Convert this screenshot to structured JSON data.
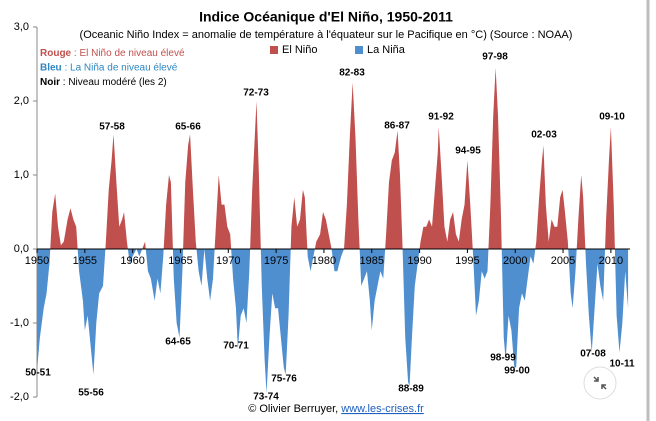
{
  "chart_data": {
    "type": "area",
    "title": "Indice Océanique d'El Niño, 1950-2011",
    "subtitle": "(Oceanic Niño Index = anomalie de température à l'équateur sur le Pacifique en °C) (Source : NOAA)",
    "series": [
      {
        "name": "El Niño",
        "color": "#c0504d"
      },
      {
        "name": "La Niña",
        "color": "#4f8fd0"
      }
    ],
    "notes": [
      {
        "key": "Rouge",
        "text": ": El Niño de niveau élevé",
        "color": "#c0504d"
      },
      {
        "key": "Bleu",
        "text": ": La Niña de niveau élevé",
        "color": "#2e86c1"
      },
      {
        "key": "Noir",
        "text": ": Niveau modéré (les 2)",
        "color": "#000000"
      }
    ],
    "annotations": [
      {
        "text": "57-58",
        "color": "#b83b3b"
      },
      {
        "text": "65-66",
        "color": "#b83b3b"
      },
      {
        "text": "72-73",
        "color": "#b83b3b"
      },
      {
        "text": "82-83",
        "color": "#b83b3b"
      },
      {
        "text": "86-87",
        "color": "#000000"
      },
      {
        "text": "91-92",
        "color": "#b83b3b"
      },
      {
        "text": "94-95",
        "color": "#000000"
      },
      {
        "text": "97-98",
        "color": "#b83b3b"
      },
      {
        "text": "02-03",
        "color": "#000000"
      },
      {
        "text": "09-10",
        "color": "#b83b3b"
      },
      {
        "text": "50-51",
        "color": "#000000"
      },
      {
        "text": "55-56",
        "color": "#2e86c1"
      },
      {
        "text": "64-65",
        "color": "#000000"
      },
      {
        "text": "70-71",
        "color": "#000000"
      },
      {
        "text": "73-74",
        "color": "#2e86c1"
      },
      {
        "text": "75-76",
        "color": "#2e86c1"
      },
      {
        "text": "88-89",
        "color": "#2e86c1"
      },
      {
        "text": "98-99",
        "color": "#000000"
      },
      {
        "text": "99-00",
        "color": "#000000"
      },
      {
        "text": "07-08",
        "color": "#000000"
      },
      {
        "text": "10-11",
        "color": "#000000"
      }
    ],
    "credit": "© Olivier Berruyer,",
    "link": "www.les-crises.fr",
    "xlim": [
      1950,
      2012
    ],
    "xticks": [
      1950,
      1955,
      1960,
      1965,
      1970,
      1975,
      1980,
      1985,
      1990,
      1995,
      2000,
      2005,
      2010
    ],
    "ylim": [
      -2,
      3
    ],
    "yticks": [
      {
        "value": -2,
        "label": "-2,0"
      },
      {
        "value": -1,
        "label": "-1,0"
      },
      {
        "value": 0,
        "label": "0,0"
      },
      {
        "value": 1,
        "label": "1,0"
      },
      {
        "value": 2,
        "label": "2,0"
      },
      {
        "value": 3,
        "label": "3,0"
      }
    ],
    "x": [
      1950.0,
      1950.3,
      1950.7,
      1951.0,
      1951.3,
      1951.6,
      1951.9,
      1952.2,
      1952.5,
      1952.8,
      1953.2,
      1953.5,
      1953.8,
      1954.1,
      1954.4,
      1954.8,
      1955.0,
      1955.3,
      1955.6,
      1955.9,
      1956.2,
      1956.5,
      1956.9,
      1957.2,
      1957.5,
      1957.8,
      1958.0,
      1958.3,
      1958.6,
      1958.9,
      1959.1,
      1959.4,
      1959.7,
      1960.0,
      1960.4,
      1960.7,
      1961.0,
      1961.3,
      1961.6,
      1961.9,
      1962.3,
      1962.6,
      1962.9,
      1963.2,
      1963.5,
      1963.8,
      1964.0,
      1964.3,
      1964.6,
      1964.9,
      1965.2,
      1965.5,
      1965.8,
      1966.0,
      1966.3,
      1966.6,
      1966.9,
      1967.2,
      1967.5,
      1967.8,
      1968.1,
      1968.4,
      1968.7,
      1969.0,
      1969.3,
      1969.6,
      1969.9,
      1970.2,
      1970.5,
      1970.8,
      1971.0,
      1971.3,
      1971.6,
      1971.9,
      1972.2,
      1972.5,
      1972.8,
      1972.95,
      1973.2,
      1973.5,
      1973.8,
      1974.0,
      1974.3,
      1974.6,
      1974.9,
      1975.2,
      1975.5,
      1975.8,
      1976.0,
      1976.3,
      1976.6,
      1976.9,
      1977.2,
      1977.5,
      1977.8,
      1978.0,
      1978.3,
      1978.6,
      1978.9,
      1979.2,
      1979.6,
      1979.9,
      1980.2,
      1980.5,
      1980.8,
      1981.1,
      1981.4,
      1981.8,
      1982.1,
      1982.4,
      1982.7,
      1983.0,
      1983.3,
      1983.6,
      1983.9,
      1984.2,
      1984.5,
      1984.8,
      1985.0,
      1985.3,
      1985.6,
      1985.9,
      1986.2,
      1986.5,
      1986.8,
      1987.1,
      1987.4,
      1987.7,
      1987.95,
      1988.2,
      1988.5,
      1988.8,
      1988.95,
      1989.2,
      1989.5,
      1989.8,
      1990.1,
      1990.4,
      1990.7,
      1991.0,
      1991.3,
      1991.6,
      1991.9,
      1992.0,
      1992.3,
      1992.6,
      1992.9,
      1993.2,
      1993.5,
      1993.8,
      1994.1,
      1994.4,
      1994.7,
      1995.0,
      1995.3,
      1995.6,
      1995.9,
      1996.2,
      1996.5,
      1996.8,
      1997.1,
      1997.4,
      1997.7,
      1997.95,
      1998.2,
      1998.5,
      1998.8,
      1999.0,
      1999.3,
      1999.6,
      1999.9,
      2000.1,
      2000.4,
      2000.7,
      2001.0,
      2001.3,
      2001.6,
      2001.9,
      2002.2,
      2002.5,
      2002.8,
      2002.95,
      2003.2,
      2003.5,
      2003.8,
      2004.1,
      2004.4,
      2004.7,
      2004.95,
      2005.2,
      2005.5,
      2005.8,
      2006.0,
      2006.3,
      2006.6,
      2006.9,
      2007.1,
      2007.4,
      2007.7,
      2008.0,
      2008.3,
      2008.6,
      2008.9,
      2009.2,
      2009.5,
      2009.8,
      2010.0,
      2010.3,
      2010.6,
      2010.9,
      2011.2,
      2011.5,
      2011.8
    ],
    "values": [
      -1.65,
      -1.2,
      -0.8,
      -0.6,
      -0.2,
      0.5,
      0.75,
      0.3,
      0.05,
      0.1,
      0.4,
      0.55,
      0.4,
      0.3,
      -0.3,
      -0.7,
      -1.1,
      -0.9,
      -1.3,
      -1.7,
      -1.0,
      -0.6,
      -0.5,
      0.1,
      0.8,
      1.2,
      1.55,
      0.9,
      0.3,
      0.4,
      0.5,
      0.1,
      -0.2,
      -0.1,
      0.0,
      -0.1,
      0.0,
      0.1,
      -0.3,
      -0.4,
      -0.7,
      -0.4,
      -0.6,
      -0.1,
      0.6,
      1.0,
      0.9,
      -0.4,
      -1.0,
      -1.2,
      -0.3,
      0.9,
      1.4,
      1.55,
      0.8,
      0.1,
      -0.3,
      -0.5,
      0.0,
      -0.4,
      -0.7,
      -0.4,
      0.3,
      1.0,
      0.6,
      0.6,
      0.3,
      0.2,
      -0.4,
      -0.8,
      -1.35,
      -0.9,
      -0.8,
      -1.0,
      -0.3,
      0.8,
      1.6,
      2.0,
      1.0,
      -0.5,
      -1.5,
      -1.95,
      -1.2,
      -0.6,
      -0.8,
      -0.8,
      -1.2,
      -1.6,
      -1.7,
      -0.9,
      0.3,
      0.7,
      0.3,
      0.4,
      0.8,
      0.7,
      -0.1,
      -0.3,
      -0.1,
      0.1,
      0.2,
      0.5,
      0.4,
      0.2,
      0.0,
      -0.3,
      -0.3,
      -0.1,
      0.0,
      0.6,
      1.5,
      2.25,
      1.5,
      0.4,
      -0.5,
      -0.4,
      -0.3,
      -0.7,
      -1.1,
      -0.7,
      -0.5,
      -0.3,
      -0.4,
      0.2,
      0.9,
      1.2,
      1.3,
      1.6,
      1.0,
      0.1,
      -1.2,
      -1.8,
      -1.85,
      -1.2,
      -0.5,
      -0.2,
      0.1,
      0.3,
      0.3,
      0.4,
      0.3,
      0.8,
      1.3,
      1.65,
      1.0,
      0.3,
      0.1,
      0.4,
      0.5,
      0.2,
      0.1,
      0.4,
      0.6,
      1.2,
      0.6,
      -0.1,
      -0.9,
      -0.7,
      -0.3,
      -0.4,
      -0.3,
      0.6,
      1.8,
      2.45,
      1.8,
      0.5,
      -1.2,
      -1.5,
      -0.9,
      -1.1,
      -1.6,
      -1.6,
      -0.8,
      -0.6,
      -0.7,
      -0.4,
      -0.1,
      -0.2,
      0.1,
      0.7,
      1.2,
      1.4,
      0.6,
      0.1,
      0.4,
      0.3,
      0.3,
      0.7,
      0.8,
      0.5,
      0.1,
      -0.6,
      -0.8,
      -0.3,
      0.4,
      1.0,
      0.7,
      -0.2,
      -0.9,
      -1.4,
      -0.8,
      -0.2,
      -0.5,
      -0.7,
      0.4,
      1.2,
      1.65,
      0.6,
      -0.9,
      -1.4,
      -1.0,
      -0.3,
      -0.8
    ]
  }
}
